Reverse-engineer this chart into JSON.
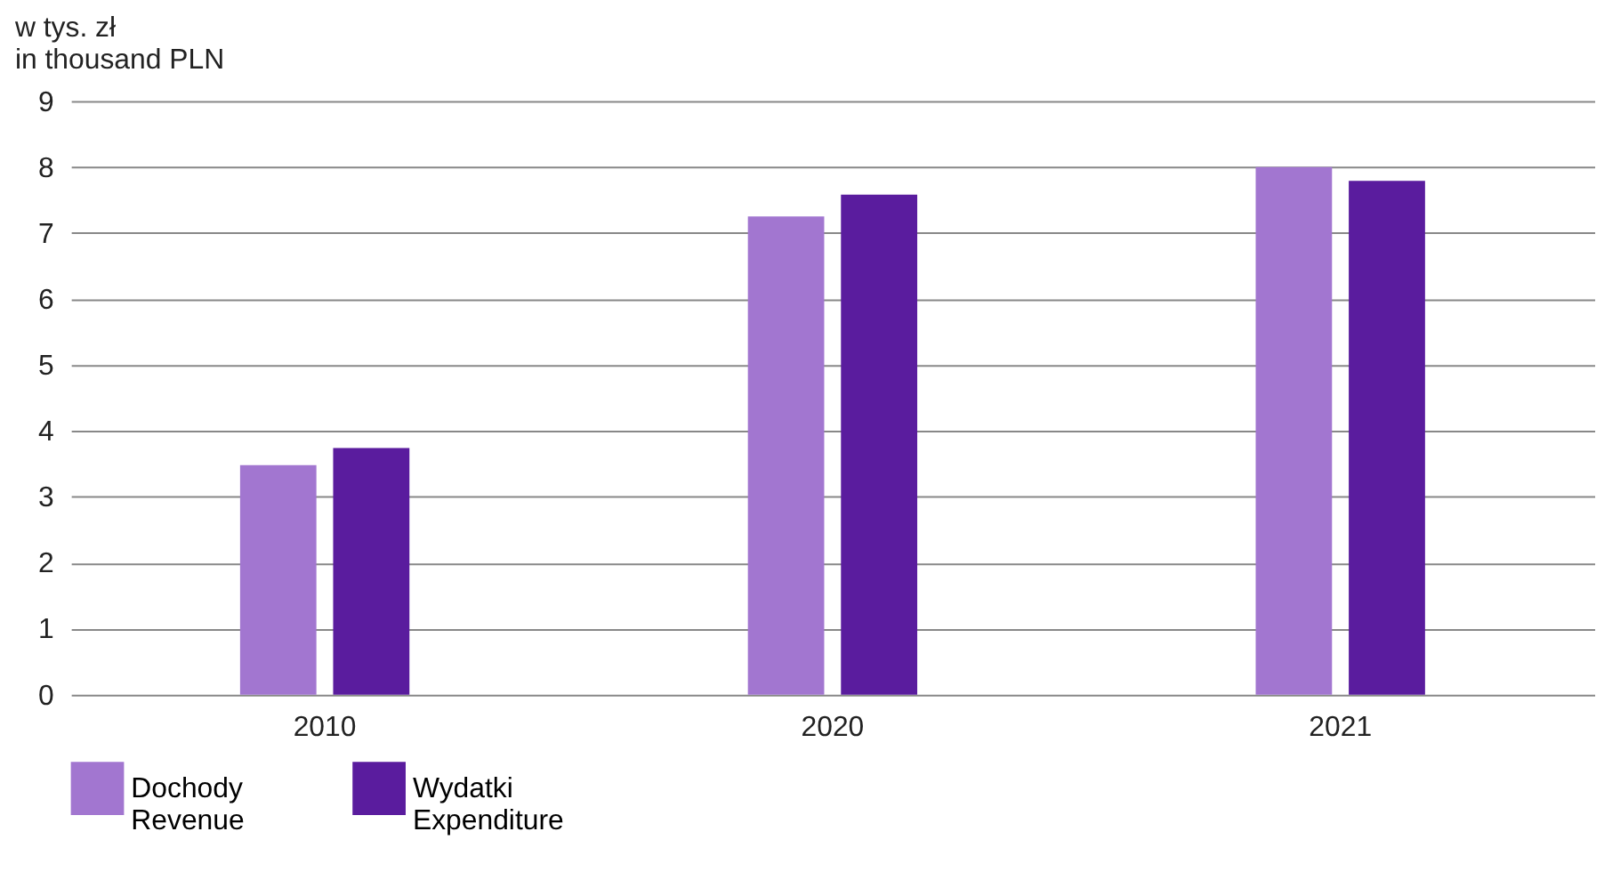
{
  "chart_data": {
    "type": "bar",
    "ylabel": "w tys. zł\nin thousand PLN",
    "categories": [
      "2010",
      "2020",
      "2021"
    ],
    "series": [
      {
        "name": "Dochody\nRevenue",
        "color": "#a276d0",
        "values": [
          3.48,
          7.25,
          8.0
        ]
      },
      {
        "name": "Wydatki\nExpenditure",
        "color": "#5a1c9e",
        "values": [
          3.74,
          7.58,
          7.79
        ]
      }
    ],
    "ylim": [
      0,
      9
    ],
    "yticks": [
      0,
      1,
      2,
      3,
      4,
      5,
      6,
      7,
      8,
      9
    ],
    "grid": "y",
    "legend": "bottom"
  }
}
